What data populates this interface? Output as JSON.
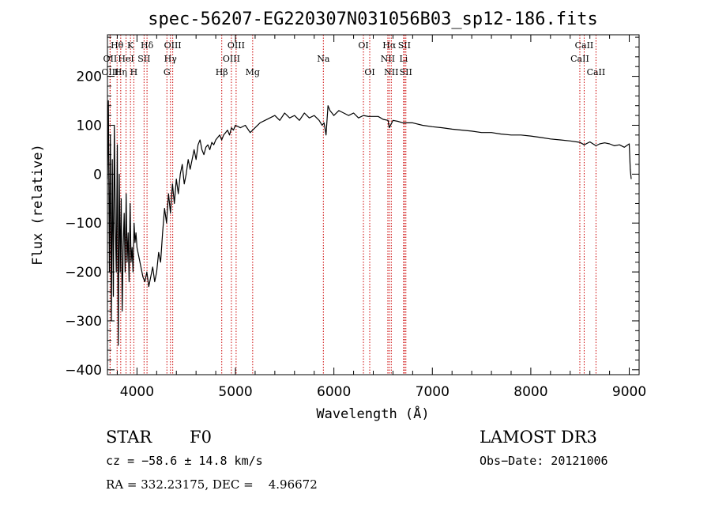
{
  "chart_data": {
    "type": "line",
    "title": "spec-56207-EG220307N031056B03_sp12-186.fits",
    "xlabel": "Wavelength (Å)",
    "ylabel": "Flux (relative)",
    "xlim": [
      3700,
      9100
    ],
    "ylim": [
      -410,
      285
    ],
    "x_ticks": [
      4000,
      5000,
      6000,
      7000,
      8000,
      9000
    ],
    "y_ticks": [
      -400,
      -300,
      -200,
      -100,
      0,
      100,
      200
    ],
    "grid": false,
    "series": [
      {
        "x": [
          3700,
          3710,
          3720,
          3730,
          3740,
          3750,
          3760,
          3770,
          3780,
          3790,
          3800,
          3810,
          3820,
          3830,
          3840,
          3850,
          3860,
          3870,
          3880,
          3890,
          3900,
          3910,
          3920,
          3930,
          3940,
          3950,
          3960,
          3970,
          3980,
          3990,
          4000,
          4020,
          4040,
          4060,
          4080,
          4100,
          4120,
          4140,
          4160,
          4180,
          4200,
          4220,
          4240,
          4260,
          4280,
          4300,
          4320,
          4340,
          4360,
          4380,
          4400,
          4420,
          4440,
          4460,
          4480,
          4500,
          4520,
          4540,
          4560,
          4580,
          4600,
          4620,
          4640,
          4660,
          4680,
          4700,
          4720,
          4740,
          4760,
          4780,
          4800,
          4820,
          4840,
          4860,
          4880,
          4900,
          4920,
          4940,
          4960,
          4980,
          5000,
          5050,
          5100,
          5150,
          5200,
          5250,
          5300,
          5350,
          5400,
          5450,
          5500,
          5550,
          5600,
          5650,
          5700,
          5750,
          5800,
          5850,
          5880,
          5900,
          5920,
          5940,
          5960,
          5980,
          6000,
          6050,
          6100,
          6150,
          6200,
          6250,
          6300,
          6350,
          6400,
          6450,
          6500,
          6550,
          6563,
          6600,
          6650,
          6700,
          6800,
          6900,
          7000,
          7100,
          7200,
          7300,
          7400,
          7500,
          7600,
          7700,
          7800,
          7900,
          8000,
          8100,
          8200,
          8300,
          8400,
          8500,
          8542,
          8600,
          8662,
          8700,
          8750,
          8800,
          8850,
          8900,
          8950,
          9000,
          9010,
          9020
        ],
        "y": [
          -10,
          150,
          -200,
          80,
          -300,
          30,
          -250,
          100,
          -100,
          -200,
          60,
          -350,
          0,
          -200,
          -50,
          -280,
          -150,
          -80,
          -200,
          -40,
          -180,
          -120,
          -220,
          -60,
          -180,
          -150,
          -200,
          -100,
          -140,
          -120,
          -150,
          -170,
          -190,
          -210,
          -220,
          -200,
          -230,
          -210,
          -190,
          -220,
          -200,
          -160,
          -180,
          -120,
          -70,
          -100,
          -40,
          -80,
          -20,
          -60,
          -10,
          -40,
          0,
          20,
          -20,
          0,
          30,
          10,
          30,
          50,
          30,
          60,
          70,
          50,
          40,
          55,
          60,
          50,
          65,
          60,
          70,
          75,
          80,
          70,
          80,
          85,
          90,
          80,
          95,
          90,
          100,
          95,
          100,
          85,
          95,
          105,
          110,
          115,
          120,
          110,
          125,
          115,
          120,
          110,
          125,
          115,
          120,
          110,
          100,
          105,
          80,
          140,
          130,
          125,
          120,
          130,
          125,
          120,
          125,
          115,
          120,
          118,
          118,
          118,
          112,
          110,
          95,
          110,
          108,
          105,
          105,
          100,
          97,
          95,
          92,
          90,
          88,
          85,
          85,
          82,
          80,
          80,
          78,
          75,
          72,
          70,
          68,
          65,
          60,
          66,
          58,
          62,
          64,
          62,
          58,
          60,
          55,
          62,
          10,
          -10
        ]
      }
    ],
    "line_markers": [
      {
        "label": "Hθ",
        "wave": 3798,
        "row": 1
      },
      {
        "label": "OII",
        "wave": 3727,
        "row": 2
      },
      {
        "label": "OIII",
        "wave": 3727,
        "row": 3
      },
      {
        "label": "K",
        "wave": 3934,
        "row": 1
      },
      {
        "label": "HeI",
        "wave": 3889,
        "row": 2
      },
      {
        "label": "Hη",
        "wave": 3835,
        "row": 3
      },
      {
        "label": "H",
        "wave": 3968,
        "row": 3
      },
      {
        "label": "Hδ",
        "wave": 4102,
        "row": 1
      },
      {
        "label": "SII",
        "wave": 4072,
        "row": 2
      },
      {
        "label": "OIII",
        "wave": 4363,
        "row": 1
      },
      {
        "label": "Hγ",
        "wave": 4340,
        "row": 2
      },
      {
        "label": "G",
        "wave": 4304,
        "row": 3
      },
      {
        "label": "OIII",
        "wave": 5007,
        "row": 1
      },
      {
        "label": "OIII",
        "wave": 4959,
        "row": 2
      },
      {
        "label": "Hβ",
        "wave": 4861,
        "row": 3
      },
      {
        "label": "Mg",
        "wave": 5175,
        "row": 3
      },
      {
        "label": "Na",
        "wave": 5893,
        "row": 2
      },
      {
        "label": "OI",
        "wave": 6300,
        "row": 1
      },
      {
        "label": "OI",
        "wave": 6364,
        "row": 3
      },
      {
        "label": "Hα",
        "wave": 6563,
        "row": 1
      },
      {
        "label": "NII",
        "wave": 6548,
        "row": 2
      },
      {
        "label": "NII",
        "wave": 6583,
        "row": 3
      },
      {
        "label": "SII",
        "wave": 6716,
        "row": 1
      },
      {
        "label": "Li",
        "wave": 6708,
        "row": 2
      },
      {
        "label": "SII",
        "wave": 6731,
        "row": 3
      },
      {
        "label": "CaII",
        "wave": 8542,
        "row": 1
      },
      {
        "label": "CaII",
        "wave": 8498,
        "row": 2
      },
      {
        "label": "CaII",
        "wave": 8662,
        "row": 3
      }
    ]
  },
  "info": {
    "class_label": "STAR",
    "subclass": "F0",
    "survey": "LAMOST DR3",
    "cz": "cz = −58.6 ± 14.8 km/s",
    "obs_date": "Obs−Date: 20121006",
    "coords": "RA = 332.23175, DEC =    4.96672"
  }
}
